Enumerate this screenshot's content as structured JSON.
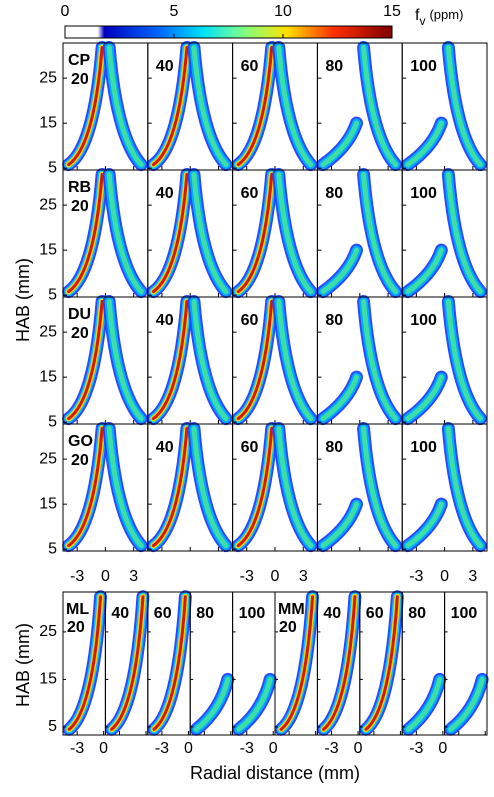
{
  "colorbar": {
    "ticks": [
      0,
      5,
      10,
      15
    ],
    "label_main": "f",
    "label_sub": "v",
    "label_unit": "(ppm)"
  },
  "y_axis_label": "HAB (mm)",
  "x_axis_label": "Radial distance (mm)",
  "top_grid": {
    "ylim": [
      4.6,
      32.8
    ],
    "xlim": [
      -4.5,
      4.5
    ],
    "yticks": [
      5,
      15,
      25
    ],
    "xticks": [
      -3,
      0,
      3
    ],
    "rows": [
      {
        "fuel": "CP",
        "labels": [
          20,
          40,
          60,
          80,
          100
        ]
      },
      {
        "fuel": "RB",
        "labels": [
          20,
          40,
          60,
          80,
          100
        ]
      },
      {
        "fuel": "DU",
        "labels": [
          20,
          40,
          60,
          80,
          100
        ]
      },
      {
        "fuel": "GO",
        "labels": [
          20,
          40,
          60,
          80,
          100
        ]
      }
    ]
  },
  "bottom_grid": {
    "ylim": [
      3.3,
      33.4
    ],
    "xlim": [
      -4.6,
      0.2
    ],
    "yticks": [
      5,
      15,
      25
    ],
    "xticks": [
      -3,
      0
    ],
    "panels": [
      {
        "fuel": "ML",
        "label": 20
      },
      {
        "label": 40
      },
      {
        "label": 60
      },
      {
        "label": 80
      },
      {
        "label": 100
      },
      {
        "fuel": "MM",
        "label": 20
      },
      {
        "label": 40
      },
      {
        "label": 60
      },
      {
        "label": 80
      },
      {
        "label": 100
      }
    ]
  }
}
